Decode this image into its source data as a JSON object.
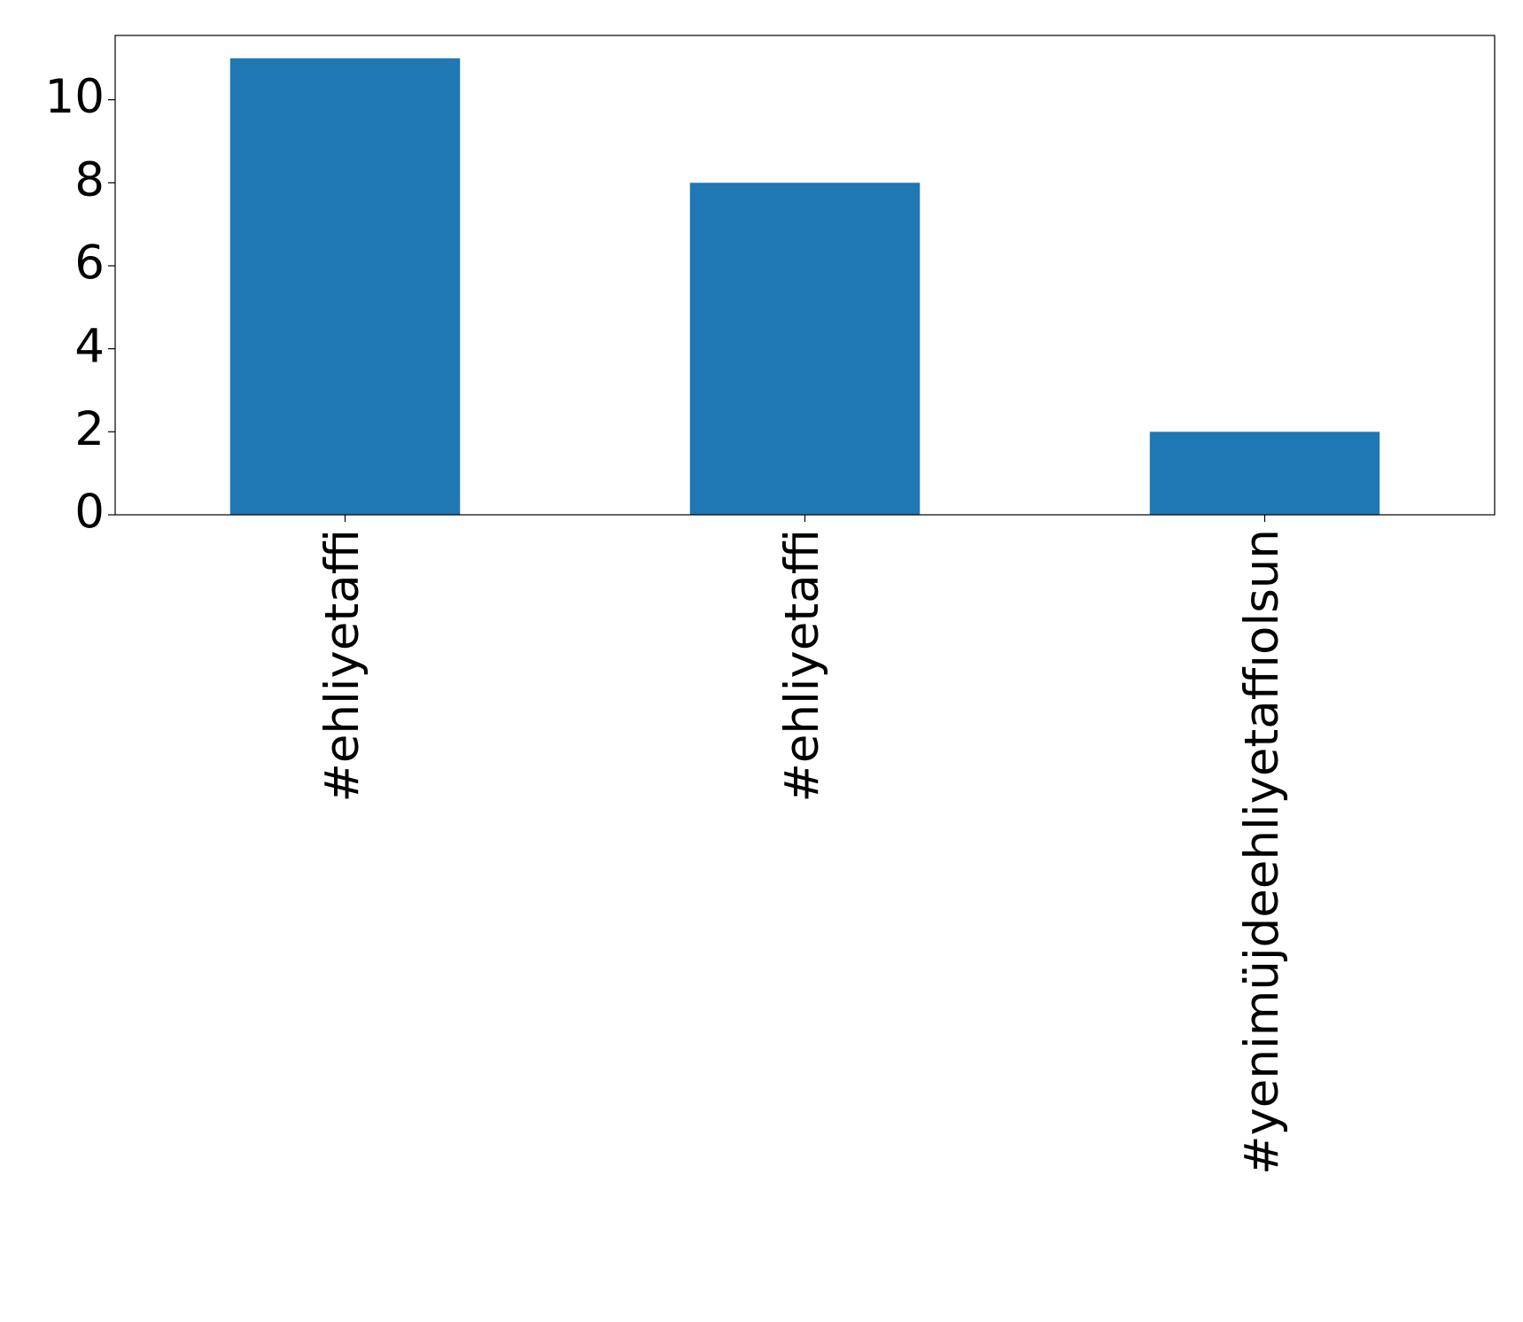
{
  "chart_data": {
    "type": "bar",
    "categories": [
      "#ehliyetaffi",
      "#ehliyetaffi",
      "#yenimüjdeehliyetaffıolsun"
    ],
    "values": [
      11,
      8,
      2
    ],
    "color": "#1f77b4",
    "ylim": [
      0,
      11.55
    ],
    "yticks": [
      0,
      2,
      4,
      6,
      8,
      10
    ]
  }
}
